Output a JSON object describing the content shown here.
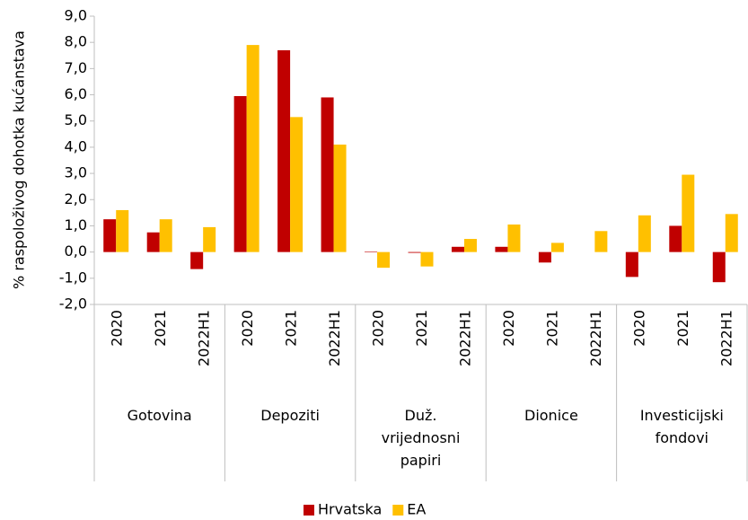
{
  "chart_data": {
    "type": "bar",
    "y_label": "% raspoloživog dohotka kućanstava",
    "categories": [
      "2020",
      "2021",
      "2022H1",
      "2020",
      "2021",
      "2022H1",
      "2020",
      "2021",
      "2022H1",
      "2020",
      "2021",
      "2022H1",
      "2020",
      "2021",
      "2022H1"
    ],
    "groups": [
      "Gotovina",
      "Depoziti",
      "Duž. vrijednosni papiri",
      "Dionice",
      "Investicijski fondovi"
    ],
    "series": [
      {
        "name": "Hrvatska",
        "color": "#c00000",
        "values": [
          1.25,
          0.75,
          -0.65,
          5.95,
          7.7,
          5.9,
          0.02,
          -0.03,
          0.2,
          0.2,
          -0.4,
          0,
          -0.95,
          1.0,
          -1.15
        ]
      },
      {
        "name": "EA",
        "color": "#ffc000",
        "values": [
          1.6,
          1.25,
          0.95,
          7.9,
          5.15,
          4.1,
          -0.6,
          -0.55,
          0.5,
          1.05,
          0.35,
          0.8,
          1.4,
          2.95,
          1.45
        ]
      }
    ],
    "ylim": [
      -2,
      9
    ],
    "yticks": [
      {
        "value": -2,
        "label": "-2,0"
      },
      {
        "value": -1,
        "label": "-1,0"
      },
      {
        "value": 0,
        "label": "0,0"
      },
      {
        "value": 1,
        "label": "1,0"
      },
      {
        "value": 2,
        "label": "2,0"
      },
      {
        "value": 3,
        "label": "3,0"
      },
      {
        "value": 4,
        "label": "4,0"
      },
      {
        "value": 5,
        "label": "5,0"
      },
      {
        "value": 6,
        "label": "6,0"
      },
      {
        "value": 7,
        "label": "7,0"
      },
      {
        "value": 8,
        "label": "8,0"
      },
      {
        "value": 9,
        "label": "9,0"
      }
    ],
    "grid": false,
    "legend": "bottom"
  }
}
